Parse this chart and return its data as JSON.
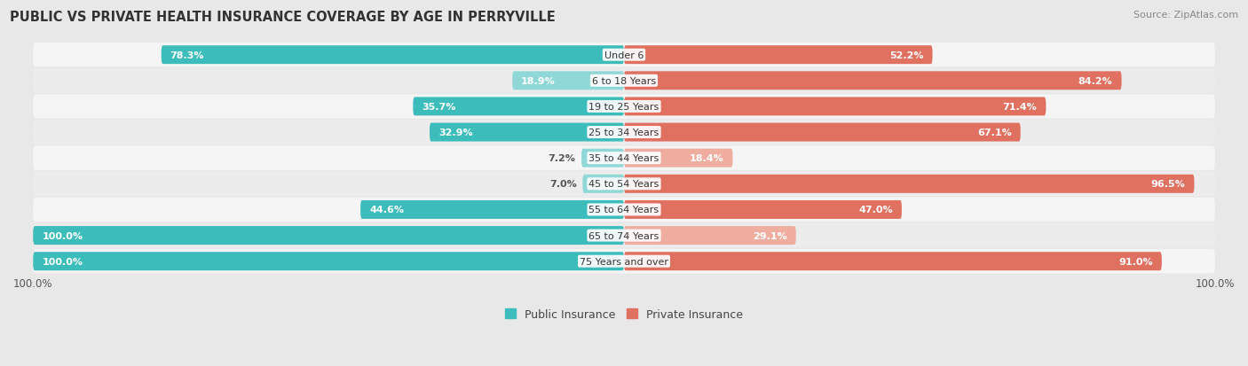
{
  "title": "PUBLIC VS PRIVATE HEALTH INSURANCE COVERAGE BY AGE IN PERRYVILLE",
  "source": "Source: ZipAtlas.com",
  "categories": [
    "Under 6",
    "6 to 18 Years",
    "19 to 25 Years",
    "25 to 34 Years",
    "35 to 44 Years",
    "45 to 54 Years",
    "55 to 64 Years",
    "65 to 74 Years",
    "75 Years and over"
  ],
  "public_values": [
    78.3,
    18.9,
    35.7,
    32.9,
    7.2,
    7.0,
    44.6,
    100.0,
    100.0
  ],
  "private_values": [
    52.2,
    84.2,
    71.4,
    67.1,
    18.4,
    96.5,
    47.0,
    29.1,
    91.0
  ],
  "public_color": "#3DBCBC",
  "private_color": "#E07060",
  "public_color_light": "#90D8D8",
  "private_color_light": "#EFADA0",
  "background_color": "#e8e8e8",
  "row_bg_even": "#f5f5f5",
  "row_bg_odd": "#ececec",
  "max_value": 100.0,
  "bar_height": 0.72,
  "legend_labels": [
    "Public Insurance",
    "Private Insurance"
  ],
  "public_threshold": 30,
  "private_threshold": 30
}
